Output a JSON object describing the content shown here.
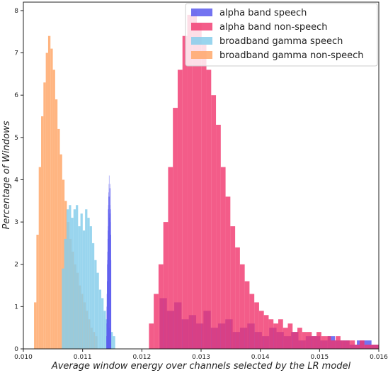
{
  "chart_data": {
    "type": "histogram",
    "title": "",
    "xlabel": "Average window energy over channels selected by the LR model",
    "ylabel": "Percentage of Windows",
    "xlim": [
      0.01,
      0.016
    ],
    "ylim": [
      0,
      8.2
    ],
    "x_ticks": [
      "0.010",
      "0.011",
      "0.012",
      "0.013",
      "0.014",
      "0.015",
      "0.016"
    ],
    "y_ticks": [
      "0",
      "1",
      "2",
      "3",
      "4",
      "5",
      "6",
      "7",
      "8"
    ],
    "grid": false,
    "legend_position": "top-right",
    "series": [
      {
        "name": "alpha band speech",
        "color": "#5b5bef",
        "opacity": 0.85,
        "bins": [
          {
            "x0": 0.0114,
            "x1": 0.01148,
            "values": [
              0.3,
              0.6,
              1.0,
              1.3,
              1.6,
              2.0,
              2.1,
              2.3,
              2.6,
              2.8,
              2.9,
              3.3,
              3.4,
              3.6,
              3.7,
              3.3,
              3.9,
              4.1,
              3.8,
              3.1,
              3.6,
              3.2,
              3.9,
              3.4,
              3.2,
              3.8,
              3.0,
              3.3,
              2.7,
              2.1
            ]
          },
          {
            "x0": 0.0123,
            "x1": 0.016,
            "values": [
              1.2,
              0.9,
              1.1,
              0.7,
              0.8,
              0.6,
              0.9,
              0.5,
              0.6,
              0.7,
              0.4,
              0.5,
              0.6,
              0.4,
              0.3,
              0.5,
              0.4,
              0.3,
              0.4,
              0.2,
              0.3,
              0.3,
              0.2,
              0.3,
              0.2,
              0.2,
              0.1,
              0.2,
              0.2,
              0.1
            ]
          }
        ]
      },
      {
        "name": "alpha band non-speech",
        "color": "#f0336b",
        "opacity": 0.8,
        "bins": [
          {
            "x0": 0.01212,
            "x1": 0.016,
            "values": [
              0.6,
              1.3,
              2.0,
              3.0,
              4.3,
              5.7,
              6.6,
              7.4,
              7.9,
              8.0,
              7.7,
              7.2,
              6.6,
              6.0,
              5.3,
              4.3,
              3.6,
              2.9,
              2.4,
              2.0,
              1.6,
              1.3,
              1.1,
              0.9,
              0.8,
              0.7,
              0.6,
              0.7,
              0.5,
              0.6,
              0.4,
              0.5,
              0.4,
              0.4,
              0.3,
              0.4,
              0.3,
              0.3,
              0.2,
              0.3,
              0.2,
              0.2,
              0.2,
              0.1,
              0.2,
              0.1,
              0.1,
              0.1
            ]
          }
        ]
      },
      {
        "name": "broadband gamma speech",
        "color": "#87ceeb",
        "opacity": 0.85,
        "bins": [
          {
            "x0": 0.01065,
            "x1": 0.01155,
            "values": [
              1.9,
              2.6,
              3.3,
              3.4,
              3.1,
              3.3,
              3.4,
              2.9,
              3.2,
              2.8,
              3.3,
              3.1,
              2.9,
              2.5,
              2.1,
              1.8,
              1.4,
              1.2,
              0.9,
              0.7,
              0.5,
              0.4,
              0.3
            ]
          }
        ]
      },
      {
        "name": "broadband gamma non-speech",
        "color": "#ffa86b",
        "opacity": 0.85,
        "bins": [
          {
            "x0": 0.01018,
            "x1": 0.01125,
            "values": [
              1.1,
              2.7,
              4.3,
              5.5,
              6.3,
              7.0,
              7.4,
              7.1,
              6.6,
              5.9,
              5.2,
              4.6,
              4.0,
              3.5,
              3.0,
              2.6,
              2.3,
              2.0,
              1.8,
              1.5,
              1.3,
              1.1,
              0.9,
              0.7,
              0.5,
              0.4,
              0.3
            ]
          }
        ]
      }
    ]
  }
}
